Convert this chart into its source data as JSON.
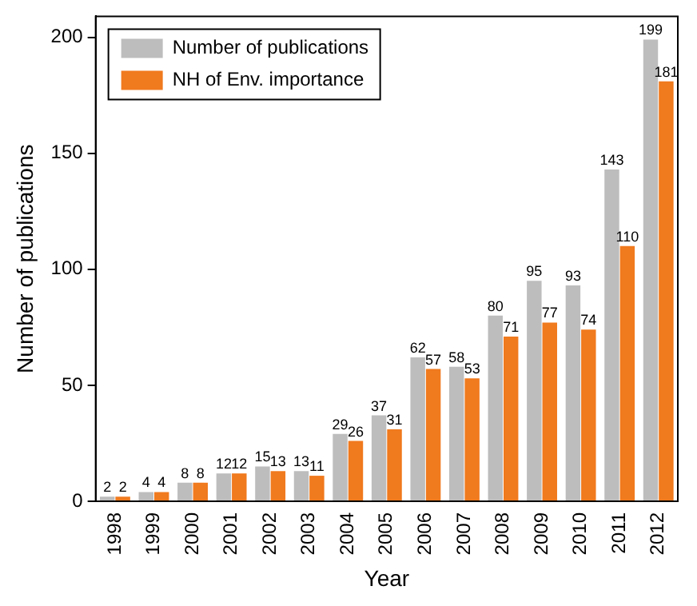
{
  "chart_data": {
    "type": "bar",
    "xlabel": "Year",
    "ylabel": "Number of publications",
    "categories": [
      "1998",
      "1999",
      "2000",
      "2001",
      "2002",
      "2003",
      "2004",
      "2005",
      "2006",
      "2007",
      "2008",
      "2009",
      "2010",
      "2011",
      "2012"
    ],
    "series": [
      {
        "name": "Number of publications",
        "color": "#bdbdbd",
        "values": [
          2,
          4,
          8,
          12,
          15,
          13,
          29,
          37,
          62,
          58,
          80,
          95,
          93,
          143,
          199
        ]
      },
      {
        "name": "NH of Env. importance",
        "color": "#f07a1e",
        "values": [
          2,
          4,
          8,
          12,
          13,
          11,
          26,
          31,
          57,
          53,
          71,
          77,
          74,
          110,
          181
        ]
      }
    ],
    "ylim": [
      0,
      209
    ],
    "yticks": [
      0,
      50,
      100,
      150,
      200
    ],
    "grid": false,
    "legend": "top left",
    "data_labels": true
  }
}
